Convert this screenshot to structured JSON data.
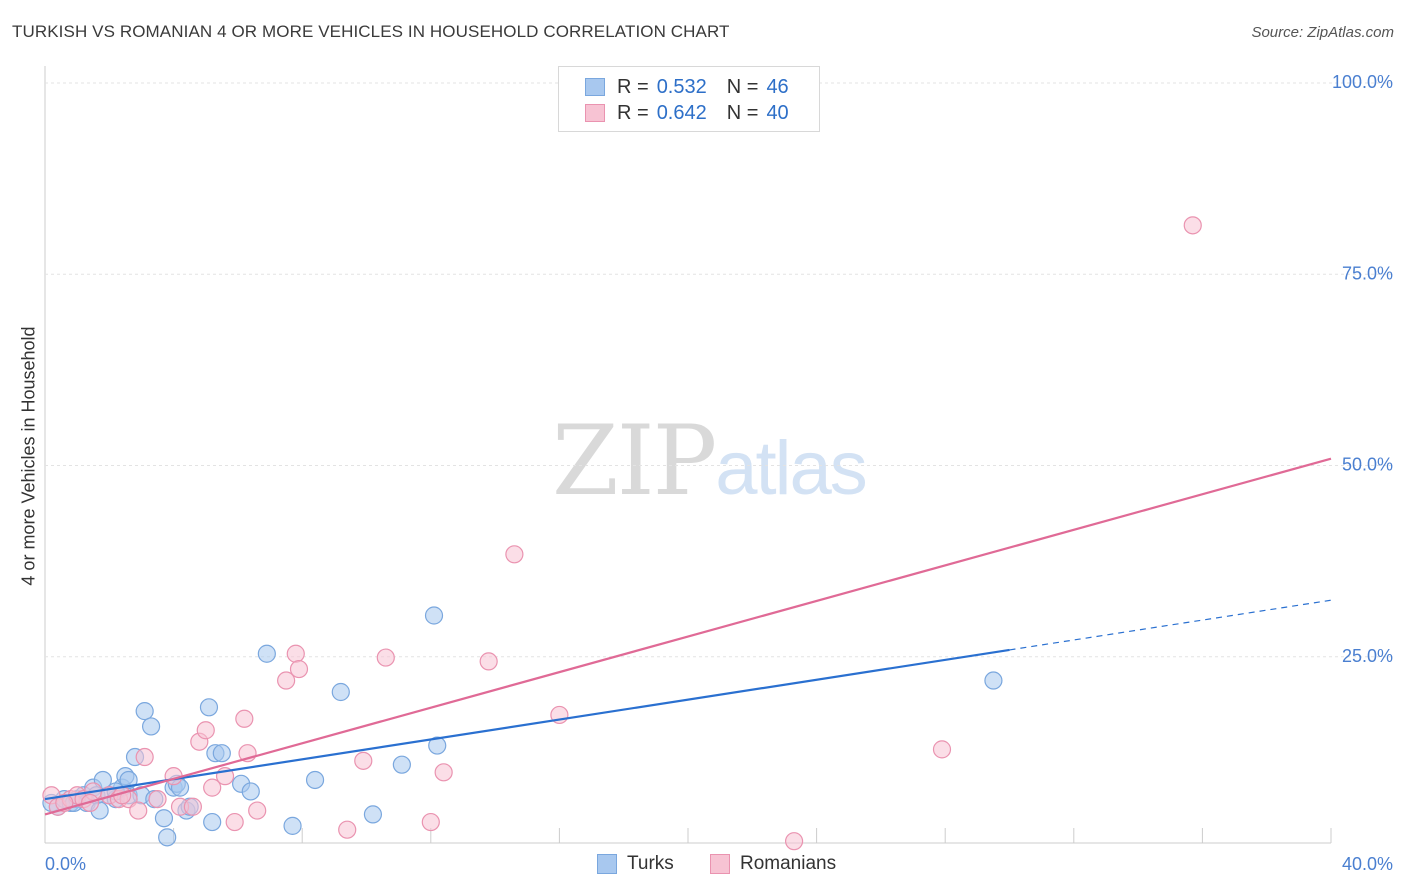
{
  "title": "TURKISH VS ROMANIAN 4 OR MORE VEHICLES IN HOUSEHOLD CORRELATION CHART",
  "source": "Source: ZipAtlas.com",
  "watermark": {
    "zip": "ZIP",
    "atlas": "atlas"
  },
  "legend": {
    "rows": [
      {
        "r_label": "R =",
        "r_value": "0.532",
        "n_label": "N =",
        "n_value": "46",
        "color": "#a8c8ef",
        "border": "#7aa7de"
      },
      {
        "r_label": "R =",
        "r_value": "0.642",
        "n_label": "N =",
        "n_value": "40",
        "color": "#f7c3d3",
        "border": "#ea93b0"
      }
    ]
  },
  "bottom_legend": {
    "turks": "Turks",
    "romanians": "Romanians"
  },
  "chart_data": {
    "type": "scatter",
    "xlabel": "",
    "ylabel": "4 or more Vehicles in Household",
    "xlim": [
      0,
      40
    ],
    "ylim": [
      0,
      100
    ],
    "x_tick_labels": [
      "0.0%",
      "40.0%"
    ],
    "y_ticks": [
      25,
      50,
      75,
      100
    ],
    "y_tick_labels": [
      "25.0%",
      "50.0%",
      "75.0%",
      "100.0%"
    ],
    "grid": true,
    "legend_position": "top-center",
    "series": [
      {
        "name": "Turks",
        "color": "#7aa7de",
        "fill": "#a8c8ef",
        "trend": {
          "x0": 0,
          "y0": 6.0,
          "x1": 30.0,
          "y1": 25.5,
          "dash_to_x": 40,
          "dash_to_y": 32.0,
          "line_color": "#2a70d0"
        },
        "points": [
          [
            0.2,
            5.5
          ],
          [
            0.4,
            5.0
          ],
          [
            0.6,
            6.0
          ],
          [
            0.8,
            5.5
          ],
          [
            1.0,
            6.0
          ],
          [
            1.2,
            6.5
          ],
          [
            1.3,
            5.5
          ],
          [
            1.5,
            7.5
          ],
          [
            1.6,
            6.5
          ],
          [
            1.7,
            4.5
          ],
          [
            1.8,
            8.5
          ],
          [
            2.0,
            6.5
          ],
          [
            2.2,
            6.0
          ],
          [
            2.4,
            7.5
          ],
          [
            2.5,
            9.0
          ],
          [
            2.6,
            6.5
          ],
          [
            2.6,
            8.5
          ],
          [
            2.8,
            11.5
          ],
          [
            3.0,
            6.5
          ],
          [
            3.1,
            17.5
          ],
          [
            3.3,
            15.5
          ],
          [
            3.4,
            6.0
          ],
          [
            3.7,
            3.5
          ],
          [
            3.8,
            1.0
          ],
          [
            4.0,
            7.5
          ],
          [
            4.1,
            8.0
          ],
          [
            4.2,
            7.5
          ],
          [
            4.4,
            4.5
          ],
          [
            4.5,
            5.0
          ],
          [
            5.1,
            18.0
          ],
          [
            5.2,
            3.0
          ],
          [
            5.3,
            12.0
          ],
          [
            5.5,
            12.0
          ],
          [
            6.1,
            8.0
          ],
          [
            6.4,
            7.0
          ],
          [
            6.9,
            25.0
          ],
          [
            7.7,
            2.5
          ],
          [
            8.4,
            8.5
          ],
          [
            9.2,
            20.0
          ],
          [
            10.2,
            4.0
          ],
          [
            11.1,
            10.5
          ],
          [
            12.1,
            30.0
          ],
          [
            12.2,
            13.0
          ],
          [
            29.5,
            21.5
          ],
          [
            0.9,
            5.5
          ],
          [
            2.2,
            7.0
          ]
        ]
      },
      {
        "name": "Romanians",
        "color": "#ea93b0",
        "fill": "#f7c3d3",
        "trend": {
          "x0": 0,
          "y0": 4.0,
          "x1": 40,
          "y1": 50.5,
          "line_color": "#e06a96"
        },
        "points": [
          [
            0.2,
            6.5
          ],
          [
            0.4,
            5.0
          ],
          [
            0.8,
            6.0
          ],
          [
            1.0,
            6.5
          ],
          [
            1.2,
            6.0
          ],
          [
            1.5,
            7.0
          ],
          [
            2.0,
            6.5
          ],
          [
            2.3,
            6.0
          ],
          [
            2.6,
            6.0
          ],
          [
            2.9,
            4.5
          ],
          [
            3.1,
            11.5
          ],
          [
            3.5,
            6.0
          ],
          [
            4.0,
            9.0
          ],
          [
            4.2,
            5.0
          ],
          [
            4.6,
            5.0
          ],
          [
            4.8,
            13.5
          ],
          [
            5.0,
            15.0
          ],
          [
            5.2,
            7.5
          ],
          [
            5.6,
            9.0
          ],
          [
            5.9,
            3.0
          ],
          [
            6.2,
            16.5
          ],
          [
            6.3,
            12.0
          ],
          [
            6.6,
            4.5
          ],
          [
            7.5,
            21.5
          ],
          [
            7.8,
            25.0
          ],
          [
            7.9,
            23.0
          ],
          [
            9.4,
            2.0
          ],
          [
            9.9,
            11.0
          ],
          [
            10.6,
            24.5
          ],
          [
            12.0,
            3.0
          ],
          [
            12.4,
            9.5
          ],
          [
            13.8,
            24.0
          ],
          [
            14.6,
            38.0
          ],
          [
            16.0,
            17.0
          ],
          [
            23.3,
            0.5
          ],
          [
            27.9,
            12.5
          ],
          [
            35.7,
            81.0
          ],
          [
            0.6,
            5.5
          ],
          [
            1.4,
            5.5
          ],
          [
            2.4,
            6.5
          ]
        ]
      }
    ]
  }
}
